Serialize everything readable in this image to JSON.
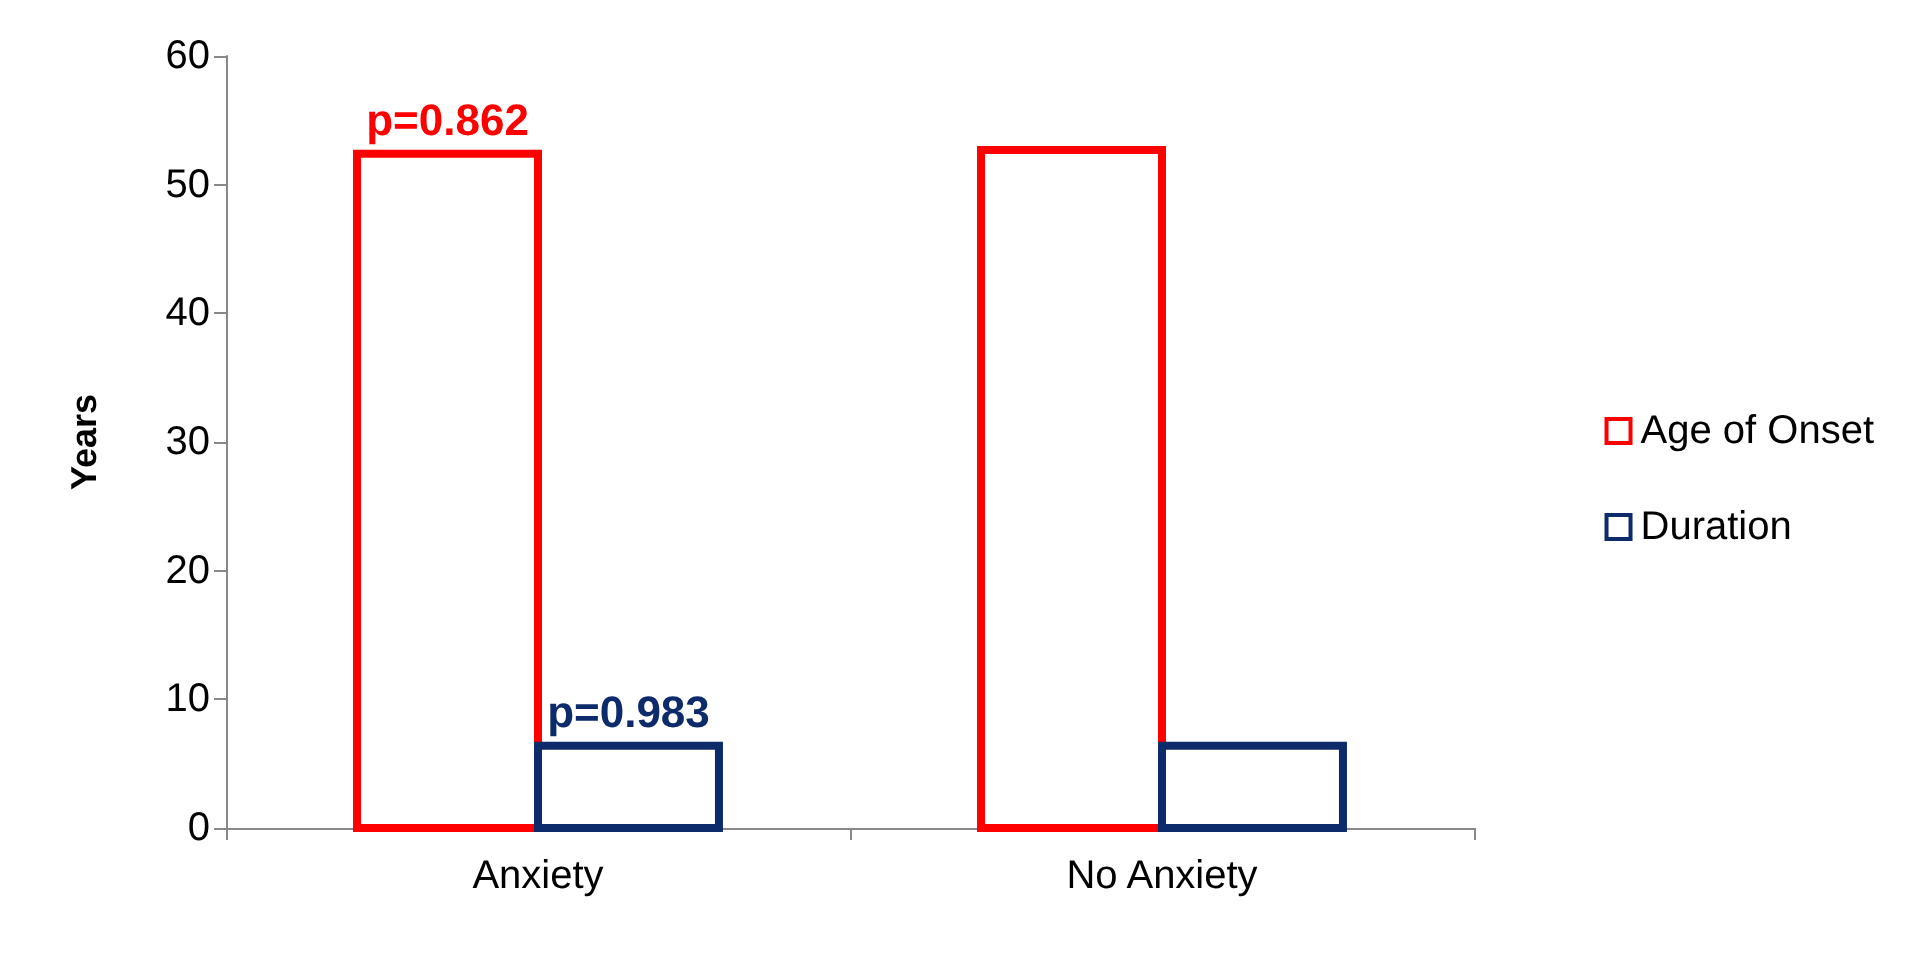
{
  "chart_data": {
    "type": "bar",
    "ylabel": "Years",
    "categories": [
      "Anxiety",
      "No Anxiety"
    ],
    "series": [
      {
        "name": "Age of Onset",
        "color": "#ff0000",
        "values": [
          52.4,
          52.7
        ]
      },
      {
        "name": "Duration",
        "color": "#0d2a6b",
        "values": [
          6.4,
          6.4
        ]
      }
    ],
    "ylim": [
      0,
      60
    ],
    "yticks": [
      0,
      10,
      20,
      30,
      40,
      50,
      60
    ],
    "grid": false,
    "legend": "right",
    "annotations": [
      {
        "text": "p=0.862",
        "x": "Anxiety",
        "y": 52.4
      },
      {
        "text": "p=0.983",
        "x": "Anxiety",
        "y": 6.4
      }
    ]
  }
}
